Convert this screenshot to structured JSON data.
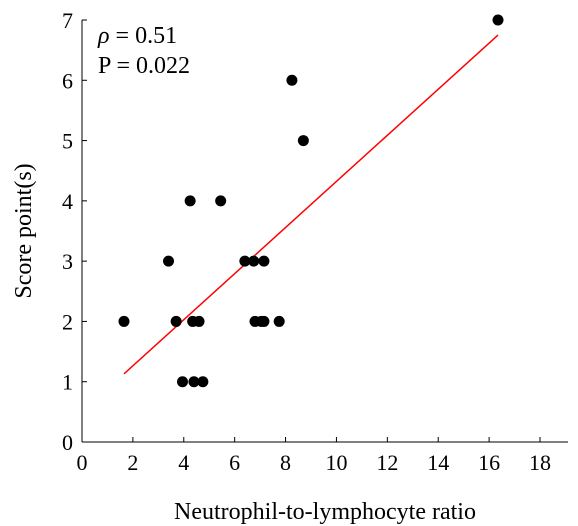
{
  "chart_data": {
    "type": "scatter",
    "xlabel": "Neutrophil-to-lymphocyte ratio",
    "ylabel": "Score point(s)",
    "xlim": [
      0,
      18
    ],
    "ylim": [
      0,
      7
    ],
    "x_ticks": [
      "0",
      "2",
      "4",
      "6",
      "8",
      "10",
      "12",
      "14",
      "16",
      "18"
    ],
    "y_ticks": [
      "0",
      "1",
      "2",
      "3",
      "4",
      "5",
      "6",
      "7"
    ],
    "grid": false,
    "annotations": {
      "rho_symbol": "ρ",
      "rho_text": " = 0.51",
      "p_text": "P = 0.022"
    },
    "points": [
      {
        "x": 1.65,
        "y": 2
      },
      {
        "x": 3.4,
        "y": 3
      },
      {
        "x": 3.7,
        "y": 2
      },
      {
        "x": 3.95,
        "y": 1
      },
      {
        "x": 4.25,
        "y": 4
      },
      {
        "x": 4.35,
        "y": 2
      },
      {
        "x": 4.4,
        "y": 1
      },
      {
        "x": 4.6,
        "y": 2
      },
      {
        "x": 4.75,
        "y": 1
      },
      {
        "x": 5.45,
        "y": 4
      },
      {
        "x": 6.4,
        "y": 3
      },
      {
        "x": 6.75,
        "y": 3
      },
      {
        "x": 6.8,
        "y": 2
      },
      {
        "x": 7.05,
        "y": 2
      },
      {
        "x": 7.15,
        "y": 2
      },
      {
        "x": 7.15,
        "y": 3
      },
      {
        "x": 7.75,
        "y": 2
      },
      {
        "x": 8.25,
        "y": 6
      },
      {
        "x": 8.7,
        "y": 5
      },
      {
        "x": 16.35,
        "y": 7
      }
    ],
    "fit_line": {
      "x": [
        1.65,
        16.35
      ],
      "y": [
        1.13,
        6.75
      ],
      "color": "#ff0000"
    },
    "point_color": "#000000"
  }
}
